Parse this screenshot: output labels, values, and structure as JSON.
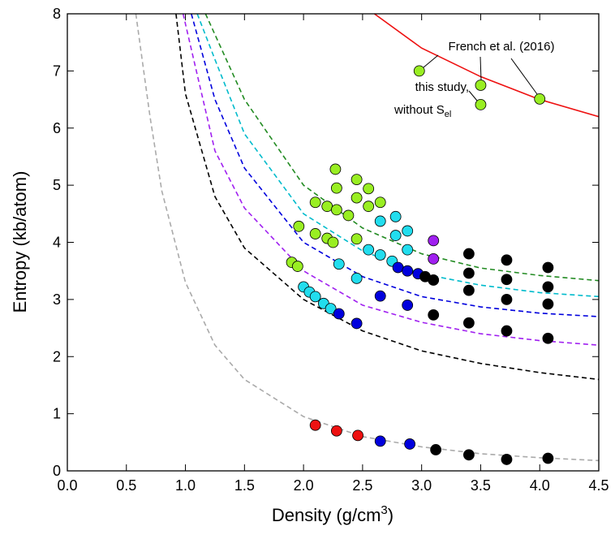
{
  "chart_data": {
    "type": "scatter",
    "xlabel": {
      "text": "Density (g/cm",
      "sup": "3",
      "end": ")"
    },
    "ylabel": "Entropy (kb/atom)",
    "xlim": [
      0,
      4.5
    ],
    "ylim": [
      0,
      8
    ],
    "xticks": [
      {
        "value": 0,
        "label": "0.0"
      },
      0.5,
      {
        "value": 1,
        "label": "1.0"
      },
      1.5,
      {
        "value": 2,
        "label": "2.0"
      },
      2.5,
      {
        "value": 3,
        "label": "3.0"
      },
      3.5,
      {
        "value": 4,
        "label": "4.0"
      },
      4.5
    ],
    "yticks": [
      0,
      1,
      2,
      3,
      4,
      5,
      6,
      7,
      8
    ],
    "annotations": [
      "French et al. (2016)",
      "this study,",
      {
        "text": "without S",
        "sub": "el"
      }
    ],
    "series": [
      {
        "mode": "line",
        "dash": true,
        "color": "#aaaaaa",
        "x": [
          0.58,
          0.7,
          0.8,
          1.0,
          1.25,
          1.5,
          2.0,
          2.5,
          3.0,
          3.5,
          4.0,
          4.5
        ],
        "values": [
          8,
          6.2,
          4.9,
          3.3,
          2.2,
          1.6,
          0.95,
          0.6,
          0.42,
          0.3,
          0.23,
          0.18
        ]
      },
      {
        "mode": "line",
        "dash": true,
        "color": "#000000",
        "x": [
          0.92,
          1.0,
          1.25,
          1.5,
          2.0,
          2.5,
          3.0,
          3.5,
          4.0,
          4.5
        ],
        "values": [
          8,
          6.6,
          4.8,
          3.9,
          3.0,
          2.45,
          2.1,
          1.88,
          1.72,
          1.6
        ]
      },
      {
        "mode": "line",
        "dash": true,
        "color": "#a020f0",
        "x": [
          0.98,
          1.25,
          1.5,
          2.0,
          2.5,
          3.0,
          3.5,
          4.0,
          4.5
        ],
        "values": [
          8,
          5.6,
          4.6,
          3.5,
          2.9,
          2.6,
          2.4,
          2.28,
          2.2
        ]
      },
      {
        "mode": "line",
        "dash": true,
        "color": "#0000dd",
        "x": [
          1.05,
          1.25,
          1.5,
          2.0,
          2.5,
          3.0,
          3.5,
          4.0,
          4.5
        ],
        "values": [
          8,
          6.5,
          5.3,
          4.0,
          3.4,
          3.05,
          2.87,
          2.76,
          2.7
        ]
      },
      {
        "mode": "line",
        "dash": true,
        "color": "#00bbcc",
        "x": [
          1.1,
          1.25,
          1.5,
          2.0,
          2.5,
          3.0,
          3.5,
          4.0,
          4.5
        ],
        "values": [
          8,
          7.2,
          5.9,
          4.5,
          3.85,
          3.45,
          3.25,
          3.12,
          3.05
        ]
      },
      {
        "mode": "line",
        "dash": true,
        "color": "#228b22",
        "x": [
          1.17,
          1.5,
          2.0,
          2.5,
          3.0,
          3.5,
          4.0,
          4.5
        ],
        "values": [
          8,
          6.5,
          5.0,
          4.25,
          3.8,
          3.55,
          3.42,
          3.33
        ]
      },
      {
        "mode": "line",
        "dash": false,
        "color": "#ee1111",
        "x": [
          2.6,
          3.0,
          3.5,
          4.0,
          4.5
        ],
        "values": [
          8,
          7.4,
          6.9,
          6.5,
          6.2
        ]
      },
      {
        "mode": "marker",
        "color": "#99ee22",
        "x": [
          1.9,
          1.95,
          1.96,
          2.1,
          2.1,
          2.2,
          2.2,
          2.25,
          2.27,
          2.28,
          2.28,
          2.38,
          2.45,
          2.45,
          2.45,
          2.55,
          2.55,
          2.65,
          2.98,
          3.5,
          3.5,
          4.0
        ],
        "values": [
          3.65,
          3.58,
          4.28,
          4.7,
          4.15,
          4.63,
          4.07,
          4.0,
          5.28,
          4.95,
          4.57,
          4.47,
          5.1,
          4.78,
          4.06,
          4.94,
          4.63,
          4.7,
          7.0,
          6.75,
          6.41,
          6.51
        ]
      },
      {
        "mode": "marker",
        "color": "#22ddee",
        "x": [
          2.0,
          2.05,
          2.1,
          2.17,
          2.23,
          2.3,
          2.45,
          2.55,
          2.65,
          2.65,
          2.75,
          2.78,
          2.78,
          2.88,
          2.88
        ],
        "values": [
          3.22,
          3.13,
          3.05,
          2.93,
          2.84,
          3.62,
          3.37,
          3.87,
          4.37,
          3.78,
          3.67,
          4.45,
          4.12,
          4.2,
          3.87
        ]
      },
      {
        "mode": "marker",
        "color": "#0000dd",
        "x": [
          2.3,
          2.45,
          2.65,
          2.8,
          2.88,
          2.88,
          2.97,
          2.65,
          2.9
        ],
        "values": [
          2.75,
          2.58,
          3.06,
          3.56,
          3.5,
          2.9,
          3.45,
          0.52,
          0.47
        ]
      },
      {
        "mode": "marker",
        "color": "#a020f0",
        "x": [
          3.1,
          3.1
        ],
        "values": [
          4.03,
          3.71
        ]
      },
      {
        "mode": "marker",
        "color": "#000000",
        "x": [
          3.03,
          3.1,
          3.1,
          3.12,
          3.4,
          3.4,
          3.4,
          3.4,
          3.4,
          3.72,
          3.72,
          3.72,
          3.72,
          3.72,
          4.07,
          4.07,
          4.07,
          4.07,
          4.07
        ],
        "values": [
          3.4,
          3.34,
          2.73,
          0.37,
          3.8,
          3.46,
          3.16,
          2.59,
          0.28,
          3.69,
          3.35,
          3.0,
          2.45,
          0.2,
          3.56,
          3.22,
          2.92,
          2.32,
          0.22
        ]
      },
      {
        "mode": "marker",
        "color": "#ee1111",
        "x": [
          2.1,
          2.28,
          2.46
        ],
        "values": [
          0.8,
          0.7,
          0.62
        ]
      }
    ]
  }
}
